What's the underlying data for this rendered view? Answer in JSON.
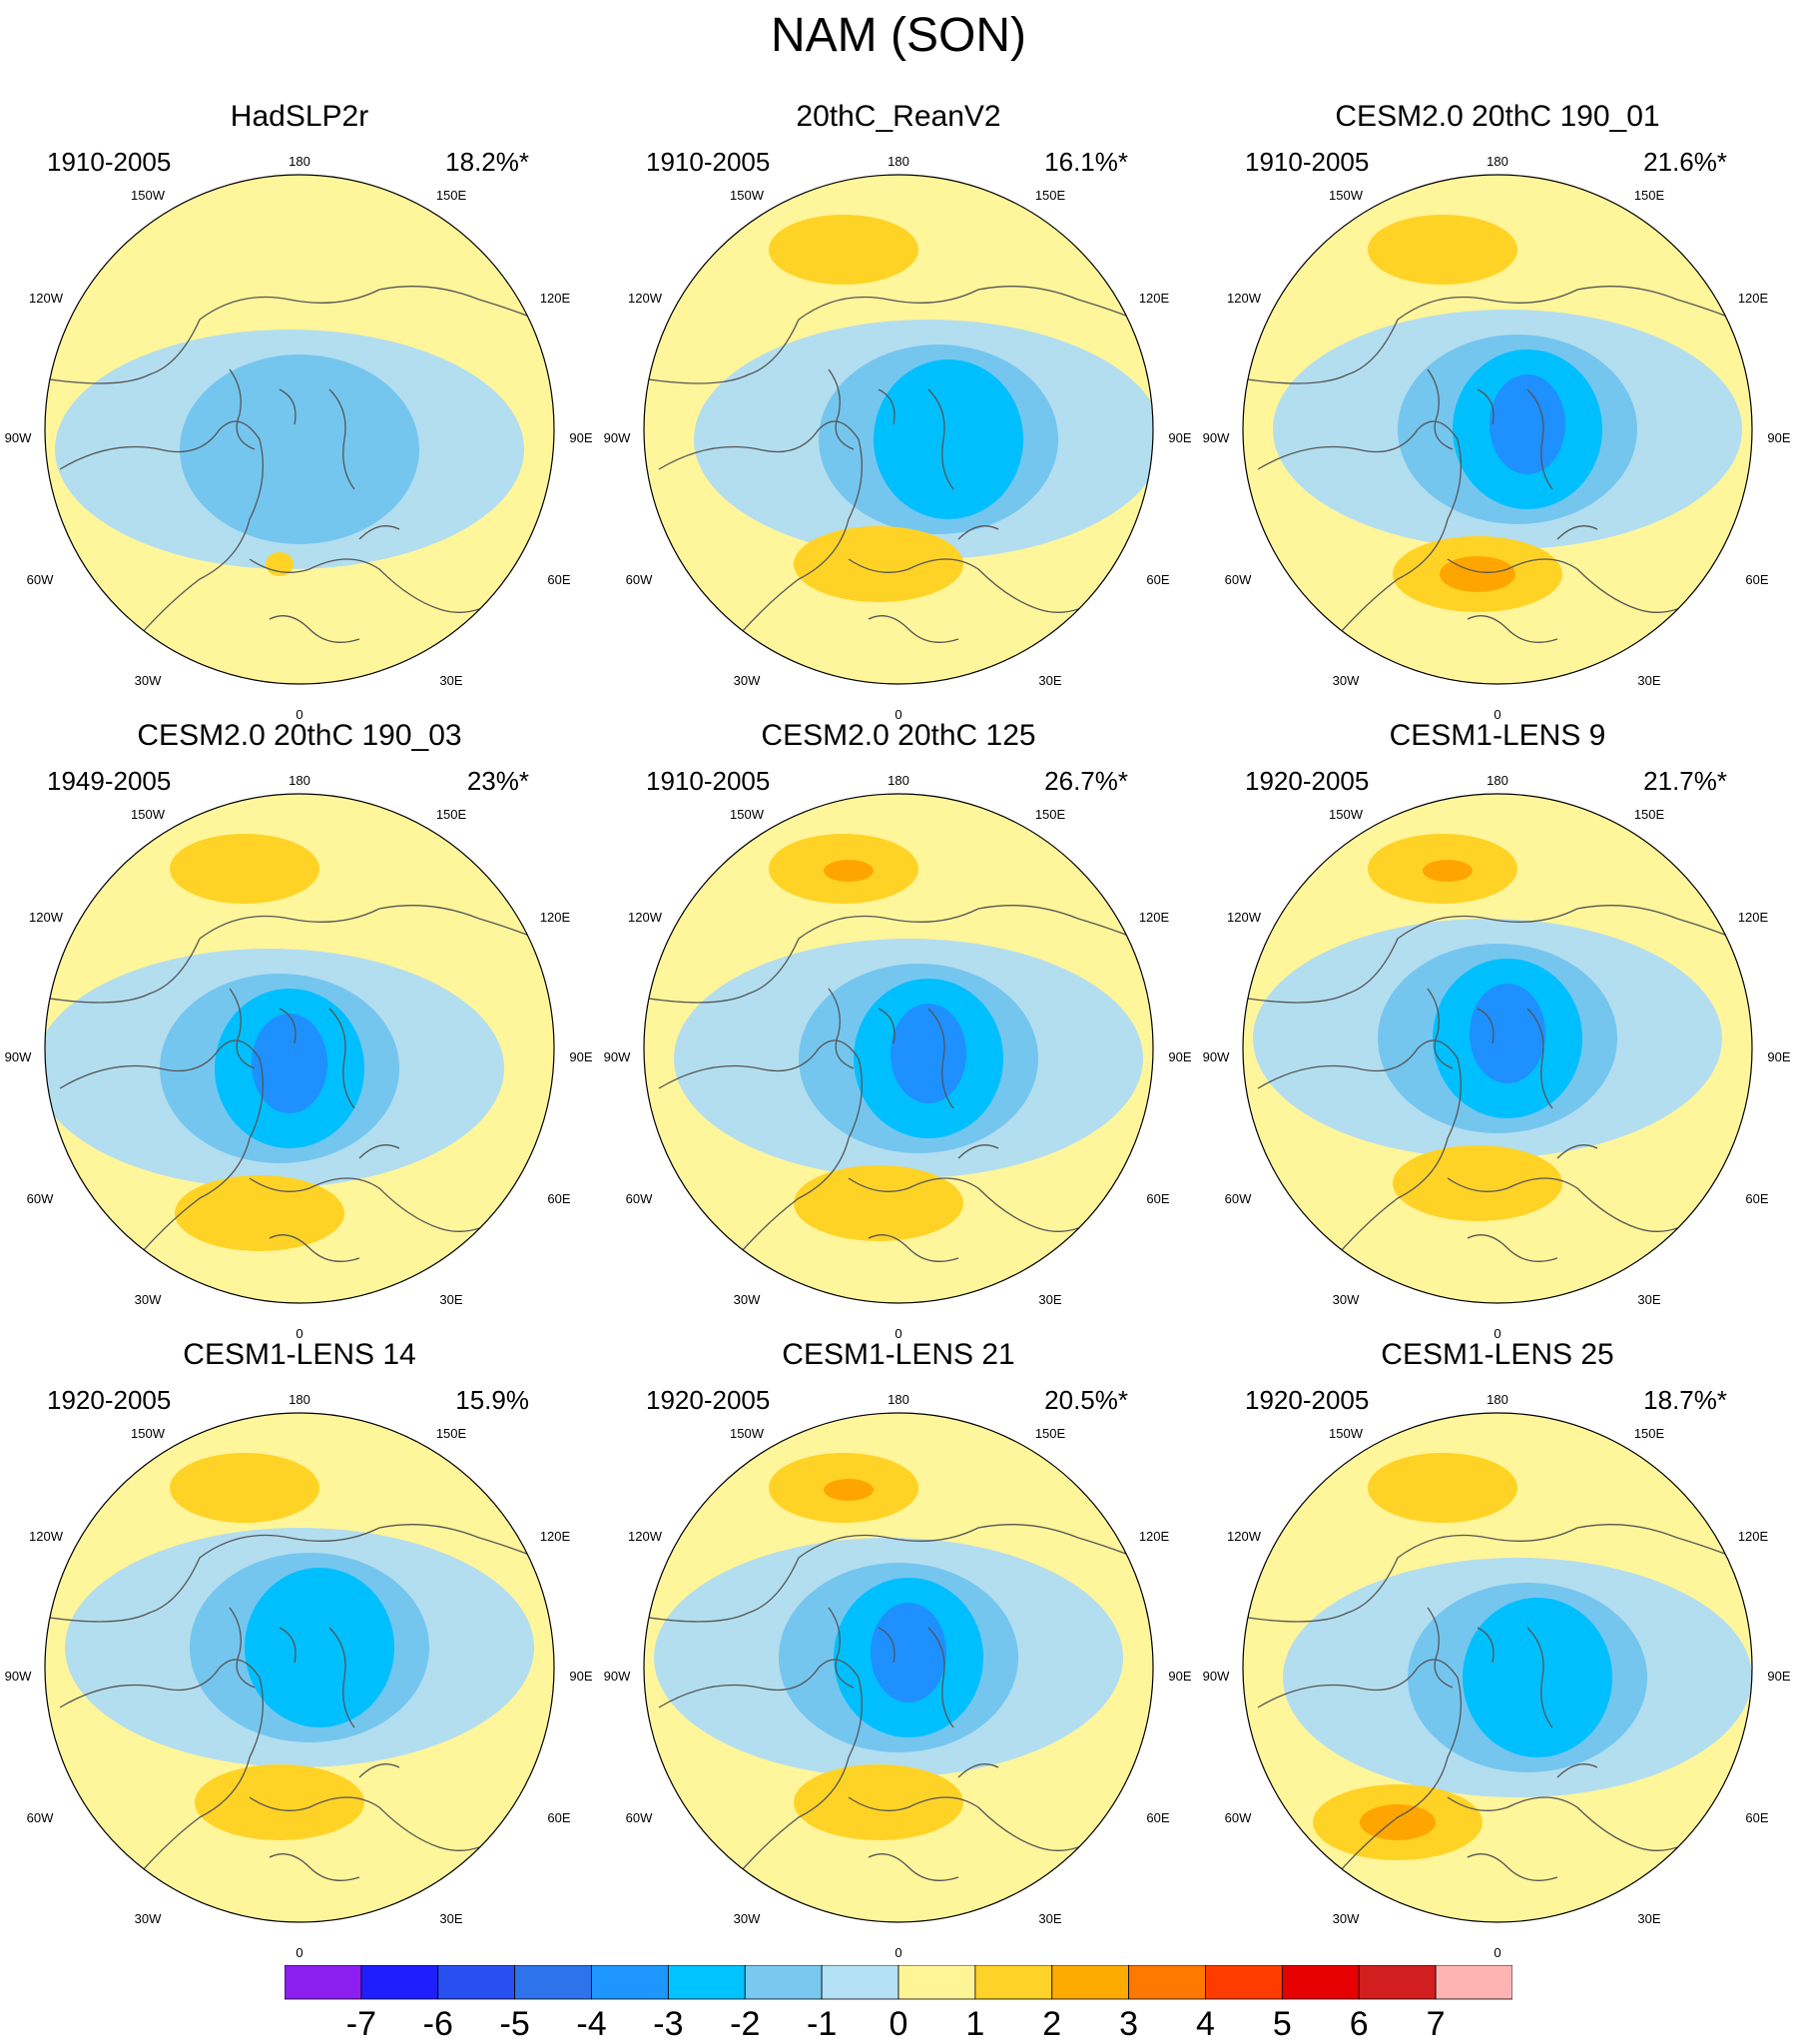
{
  "title": "NAM (SON)",
  "lon_labels": [
    "180",
    "150W",
    "150E",
    "120W",
    "120E",
    "90W",
    "90E",
    "60W",
    "60E",
    "30W",
    "30E",
    "0"
  ],
  "colors": {
    "land_outline": "#555555",
    "neg1": "#b3def0",
    "neg2": "#75c6ef",
    "neg3": "#00bfff",
    "neg4": "#1e90ff",
    "pos1": "#fff59b",
    "pos2": "#ffd326",
    "pos3": "#ffa500"
  },
  "panels": [
    {
      "title": "HadSLP2r",
      "period": "1910-2005",
      "variance": "18.2%*",
      "low_strength": 2,
      "high_strength": 1,
      "low_dx": 0,
      "low_dy": 20,
      "high_dx": 0,
      "high_dy": 0,
      "pacific_high": 0
    },
    {
      "title": "20thC_ReanV2",
      "period": "1910-2005",
      "variance": "16.1%*",
      "low_strength": 3,
      "high_strength": 2,
      "low_dx": 40,
      "low_dy": 10,
      "high_dx": 0,
      "high_dy": 0,
      "pacific_high": 1
    },
    {
      "title": "CESM2.0 20thC 190_01",
      "period": "1910-2005",
      "variance": "21.6%*",
      "low_strength": 4,
      "high_strength": 3,
      "low_dx": 20,
      "low_dy": 0,
      "high_dx": 0,
      "high_dy": 10,
      "pacific_high": 1
    },
    {
      "title": "CESM2.0 20thC 190_03",
      "period": "1949-2005",
      "variance": "23%*",
      "low_strength": 4,
      "high_strength": 2,
      "low_dx": -20,
      "low_dy": 20,
      "high_dx": -20,
      "high_dy": 30,
      "pacific_high": 1
    },
    {
      "title": "CESM2.0 20thC 125",
      "period": "1910-2005",
      "variance": "26.7%*",
      "low_strength": 4,
      "high_strength": 2,
      "low_dx": 20,
      "low_dy": 10,
      "high_dx": 0,
      "high_dy": 20,
      "pacific_high": 2
    },
    {
      "title": "CESM1-LENS 9",
      "period": "1920-2005",
      "variance": "21.7%*",
      "low_strength": 4,
      "high_strength": 2,
      "low_dx": 0,
      "low_dy": -10,
      "high_dx": 0,
      "high_dy": 0,
      "pacific_high": 2
    },
    {
      "title": "CESM1-LENS 14",
      "period": "1920-2005",
      "variance": "15.9%",
      "low_strength": 3,
      "high_strength": 2,
      "low_dx": 10,
      "low_dy": -20,
      "high_dx": 0,
      "high_dy": 0,
      "pacific_high": 1
    },
    {
      "title": "CESM1-LENS 21",
      "period": "1920-2005",
      "variance": "20.5%*",
      "low_strength": 4,
      "high_strength": 2,
      "low_dx": 0,
      "low_dy": -10,
      "high_dx": 0,
      "high_dy": 0,
      "pacific_high": 2
    },
    {
      "title": "CESM1-LENS 25",
      "period": "1920-2005",
      "variance": "18.7%*",
      "low_strength": 3,
      "high_strength": 3,
      "low_dx": 30,
      "low_dy": 10,
      "high_dx": -80,
      "high_dy": 20,
      "pacific_high": 1
    }
  ],
  "colorbar": {
    "colors": [
      "#8c1ef0",
      "#1e1eff",
      "#2850f0",
      "#2d73eb",
      "#1e96ff",
      "#00c3ff",
      "#78c8f0",
      "#b4e1f5",
      "#fff596",
      "#ffd228",
      "#ffaa00",
      "#ff7800",
      "#ff3c00",
      "#e60000",
      "#d21e1e",
      "#ffb4b4"
    ],
    "labels": [
      "-7",
      "-6",
      "-5",
      "-4",
      "-3",
      "-2",
      "-1",
      "0",
      "1",
      "2",
      "3",
      "4",
      "5",
      "6",
      "7"
    ]
  }
}
